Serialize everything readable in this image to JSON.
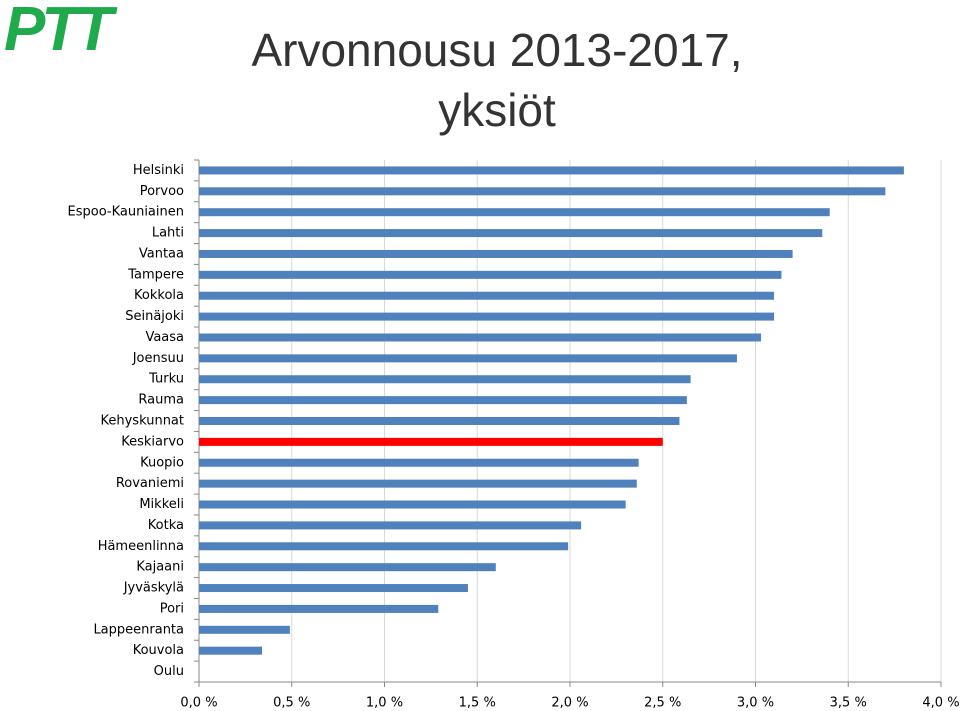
{
  "logo": "PTT",
  "chart_data": {
    "type": "barh",
    "title": "Arvonnousu 2013-2017, yksiöt",
    "categories": [
      "Helsinki",
      "Porvoo",
      "Espoo-Kauniainen",
      "Lahti",
      "Vantaa",
      "Tampere",
      "Kokkola",
      "Seinäjoki",
      "Vaasa",
      "Joensuu",
      "Turku",
      "Rauma",
      "Kehyskunnat",
      "Keskiarvo",
      "Kuopio",
      "Rovaniemi",
      "Mikkeli",
      "Kotka",
      "Hämeenlinna",
      "Kajaani",
      "Jyväskylä",
      "Pori",
      "Lappeenranta",
      "Kouvola",
      "Oulu"
    ],
    "values": [
      3.8,
      3.7,
      3.4,
      3.36,
      3.2,
      3.14,
      3.1,
      3.1,
      3.03,
      2.9,
      2.65,
      2.63,
      2.59,
      2.5,
      2.37,
      2.36,
      2.3,
      2.06,
      1.99,
      1.6,
      1.45,
      1.29,
      0.49,
      0.34,
      0
    ],
    "colors": [
      "#4f81bd",
      "#4f81bd",
      "#4f81bd",
      "#4f81bd",
      "#4f81bd",
      "#4f81bd",
      "#4f81bd",
      "#4f81bd",
      "#4f81bd",
      "#4f81bd",
      "#4f81bd",
      "#4f81bd",
      "#4f81bd",
      "#ff0000",
      "#4f81bd",
      "#4f81bd",
      "#4f81bd",
      "#4f81bd",
      "#4f81bd",
      "#4f81bd",
      "#4f81bd",
      "#4f81bd",
      "#4f81bd",
      "#4f81bd",
      "#4f81bd"
    ],
    "xlim": [
      0,
      4
    ],
    "xticks": [
      {
        "value": 0,
        "label": "0,0 %"
      },
      {
        "value": 0.5,
        "label": "0,5 %"
      },
      {
        "value": 1,
        "label": "1,0 %"
      },
      {
        "value": 1.5,
        "label": "1,5 %"
      },
      {
        "value": 2,
        "label": "2,0 %"
      },
      {
        "value": 2.5,
        "label": "2,5 %"
      },
      {
        "value": 3,
        "label": "3,0 %"
      },
      {
        "value": 3.5,
        "label": "3,5 %"
      },
      {
        "value": 4,
        "label": "4,0 %"
      }
    ],
    "grid": true
  }
}
